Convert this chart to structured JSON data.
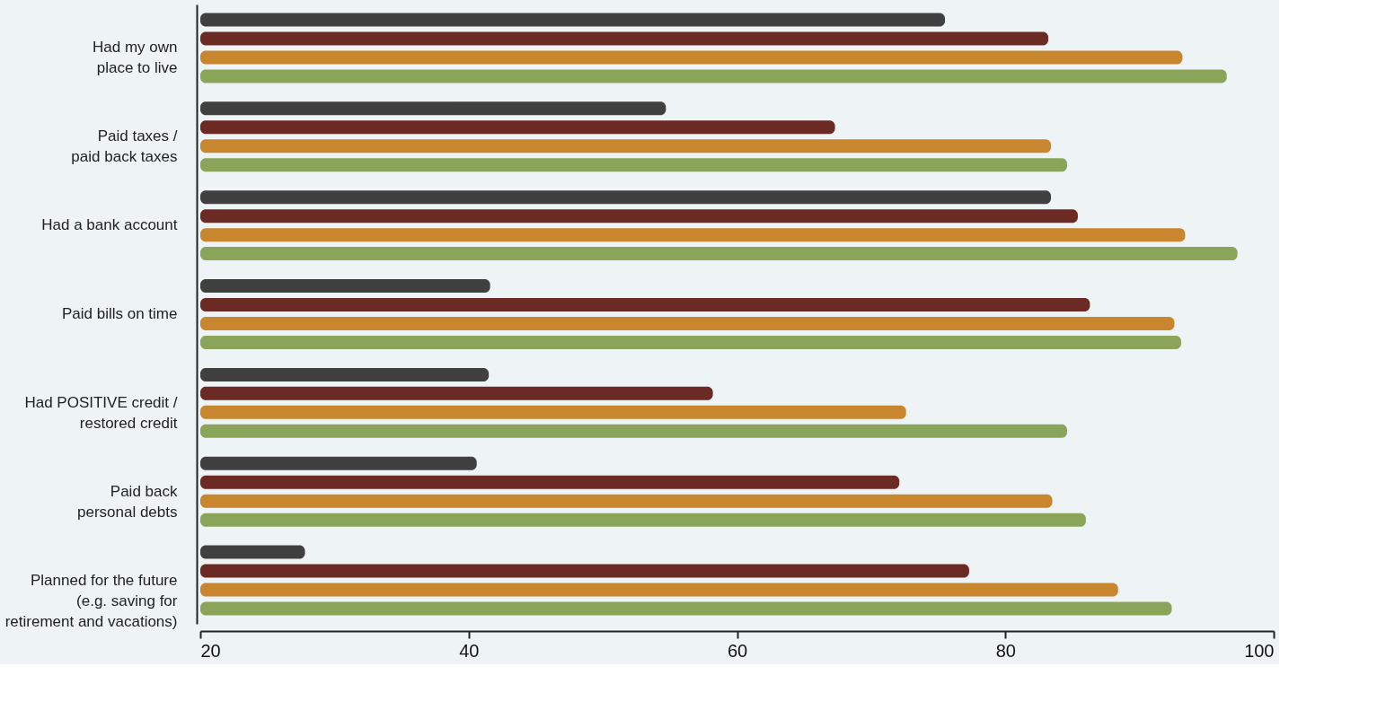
{
  "chart_data": {
    "type": "bar",
    "orientation": "horizontal",
    "categories": [
      "Had my own\nplace to live",
      "Paid taxes /\npaid back taxes",
      "Had a bank account",
      "Paid bills on time",
      "Had POSITIVE credit /\nrestored credit",
      "Paid back\npersonal debts",
      "Planned for the future\n(e.g. saving for\nretirement and vacations)"
    ],
    "series": [
      {
        "color": "#404040",
        "values": [
          75.5,
          54.7,
          83.4,
          41.6,
          41.5,
          40.6,
          27.8
        ]
      },
      {
        "color": "#6b2a24",
        "values": [
          83.2,
          67.3,
          85.4,
          86.3,
          58.2,
          72.1,
          77.3
        ]
      },
      {
        "color": "#c8862e",
        "values": [
          93.2,
          83.4,
          93.4,
          92.6,
          72.6,
          83.5,
          88.4
        ]
      },
      {
        "color": "#8aa55a",
        "values": [
          96.5,
          84.6,
          97.3,
          93.1,
          84.6,
          86.0,
          92.4
        ]
      }
    ],
    "xlim": [
      20,
      100
    ],
    "xticks": [
      20,
      40,
      60,
      80,
      100
    ],
    "grid": false,
    "legend": false
  }
}
